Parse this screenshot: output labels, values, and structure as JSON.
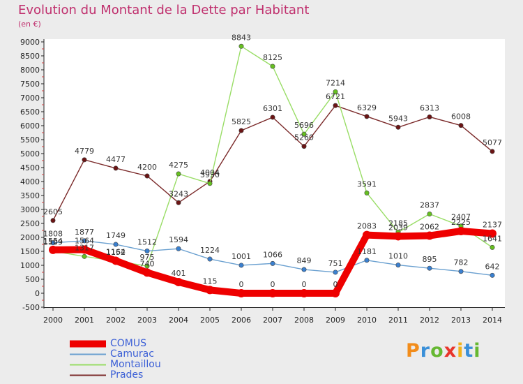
{
  "title": "Evolution du Montant de la Dette par Habitant",
  "subtitle": "(en €)",
  "logo": "Proxiti",
  "chart_data": {
    "type": "line",
    "x": [
      "2000",
      "2001",
      "2002",
      "2003",
      "2004",
      "2005",
      "2006",
      "2007",
      "2008",
      "2009",
      "2010",
      "2011",
      "2012",
      "2013",
      "2014"
    ],
    "ylim": [
      -500,
      9000
    ],
    "yticks": [
      -500,
      0,
      500,
      1000,
      1500,
      2000,
      2500,
      3000,
      3500,
      4000,
      4500,
      5000,
      5500,
      6000,
      6500,
      7000,
      7500,
      8000,
      8500,
      9000
    ],
    "grid": false,
    "legend_position": "bottom-left",
    "series": [
      {
        "name": "Prades",
        "color": "#7b2a2a",
        "marker": "#6b1414",
        "values": [
          2605,
          4779,
          4477,
          4200,
          3243,
          4004,
          5825,
          6301,
          5260,
          6721,
          6329,
          5943,
          6313,
          6008,
          5077
        ],
        "labels": [
          "2605",
          "4779",
          "4477",
          "4200",
          "3243",
          "4004",
          "5825",
          "6301",
          "5260",
          "6721",
          "6329",
          "5943",
          "6313",
          "6008",
          "5077"
        ]
      },
      {
        "name": "Montaillou",
        "color": "#99dd66",
        "marker": "#66c020",
        "values": [
          1509,
          1317,
          1152,
          975,
          4275,
          3930,
          8843,
          8125,
          5696,
          7214,
          3591,
          2185,
          2837,
          2407,
          1641
        ],
        "labels": [
          "1509",
          "1317",
          "1152",
          "975",
          "4275",
          "3930",
          "8843",
          "8125",
          "5696",
          "7214",
          "3591",
          "2185",
          "2837",
          "2407",
          "1641"
        ]
      },
      {
        "name": "Camurac",
        "color": "#6aa0d0",
        "marker": "#3a80d0",
        "values": [
          1808,
          1877,
          1749,
          1512,
          1594,
          1224,
          1001,
          1066,
          849,
          751,
          1181,
          1010,
          895,
          782,
          642
        ],
        "labels": [
          "1808",
          "1877",
          "1749",
          "1512",
          "1594",
          "1224",
          "1001",
          "1066",
          "849",
          "751",
          "1181",
          "1010",
          "895",
          "782",
          "642"
        ]
      },
      {
        "name": "COMUS",
        "color": "#ee0000",
        "marker": "#ee0000",
        "thick": true,
        "values": [
          1554,
          1564,
          1164,
          740,
          401,
          115,
          0,
          0,
          0,
          0,
          2083,
          2039,
          2062,
          2225,
          2137
        ],
        "labels": [
          "1554",
          "1564",
          "1164",
          "740",
          "401",
          "115",
          "0",
          "0",
          "0",
          "0",
          "2083",
          "2039",
          "2062",
          "2225",
          "2137"
        ]
      }
    ],
    "legend": [
      "COMUS",
      "Camurac",
      "Montaillou",
      "Prades"
    ]
  }
}
